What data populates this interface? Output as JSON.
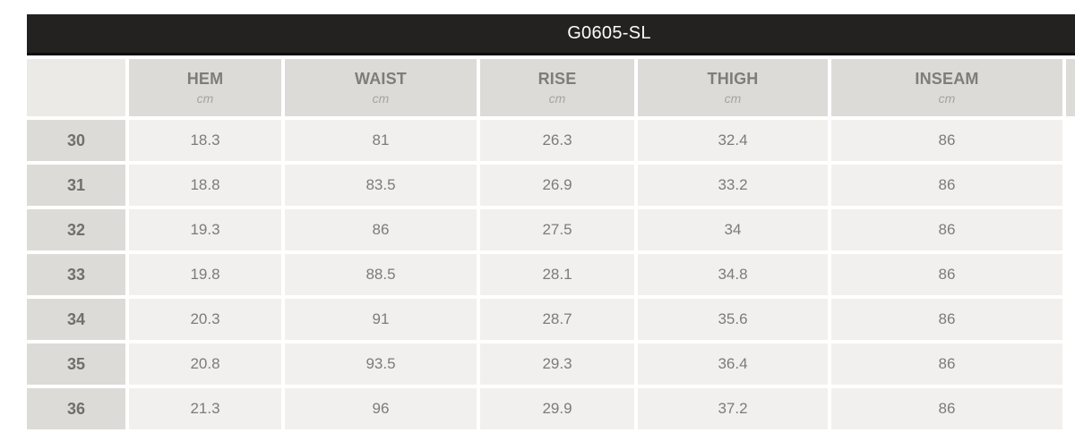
{
  "title": "G0605-SL",
  "table": {
    "columns": [
      {
        "label": "HEM",
        "unit": "cm"
      },
      {
        "label": "WAIST",
        "unit": "cm"
      },
      {
        "label": "RISE",
        "unit": "cm"
      },
      {
        "label": "THIGH",
        "unit": "cm"
      },
      {
        "label": "INSEAM",
        "unit": "cm"
      }
    ],
    "rows": [
      {
        "size": "30",
        "values": [
          "18.3",
          "81",
          "26.3",
          "32.4",
          "86"
        ]
      },
      {
        "size": "31",
        "values": [
          "18.8",
          "83.5",
          "26.9",
          "33.2",
          "86"
        ]
      },
      {
        "size": "32",
        "values": [
          "19.3",
          "86",
          "27.5",
          "34",
          "86"
        ]
      },
      {
        "size": "33",
        "values": [
          "19.8",
          "88.5",
          "28.1",
          "34.8",
          "86"
        ]
      },
      {
        "size": "34",
        "values": [
          "20.3",
          "91",
          "28.7",
          "35.6",
          "86"
        ]
      },
      {
        "size": "35",
        "values": [
          "20.8",
          "93.5",
          "29.3",
          "36.4",
          "86"
        ]
      },
      {
        "size": "36",
        "values": [
          "21.3",
          "96",
          "29.9",
          "37.2",
          "86"
        ]
      }
    ]
  },
  "colors": {
    "page_bg": "#ffffff",
    "title_bar_bg": "#232220",
    "title_bar_border": "#0d0d0b",
    "title_text": "#fbfbfb",
    "header_cell_bg": "#dcdbd8",
    "corner_cell_bg": "#ebeae7",
    "body_cell_bg": "#f1f0ee",
    "header_text": "#7d7d7b",
    "unit_text": "#a5a4a1",
    "size_text": "#6f6f6d",
    "value_text": "#7c7b79"
  }
}
